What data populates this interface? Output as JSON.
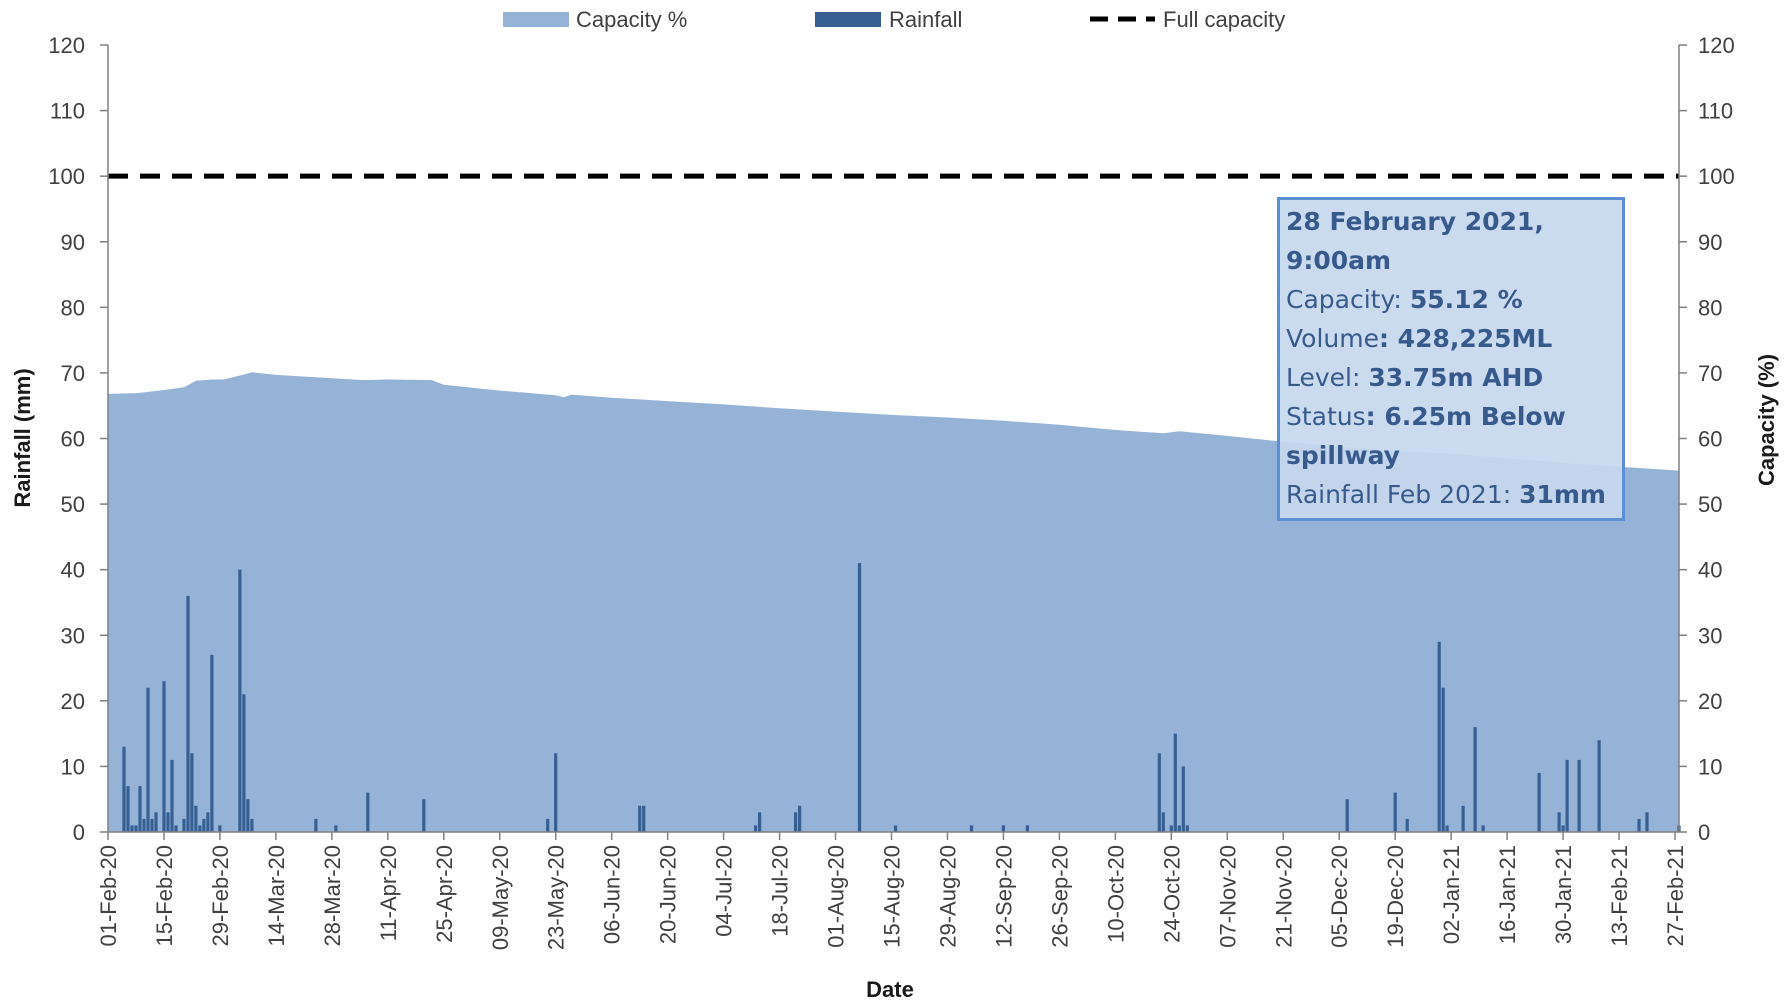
{
  "chart_data": {
    "type": "bar+area",
    "xlabel": "Date",
    "ylabel_left": "Rainfall (mm)",
    "ylabel_right": "Capacity (%)",
    "ylim": [
      0,
      120
    ],
    "yticks": [
      0,
      10,
      20,
      30,
      40,
      50,
      60,
      70,
      80,
      90,
      100,
      110,
      120
    ],
    "xlim": [
      "2020-02-01",
      "2021-02-28"
    ],
    "x_tick_labels": [
      "01-Feb-20",
      "15-Feb-20",
      "29-Feb-20",
      "14-Mar-20",
      "28-Mar-20",
      "11-Apr-20",
      "25-Apr-20",
      "09-May-20",
      "23-May-20",
      "06-Jun-20",
      "20-Jun-20",
      "04-Jul-20",
      "18-Jul-20",
      "01-Aug-20",
      "15-Aug-20",
      "29-Aug-20",
      "12-Sep-20",
      "26-Sep-20",
      "10-Oct-20",
      "24-Oct-20",
      "07-Nov-20",
      "21-Nov-20",
      "05-Dec-20",
      "19-Dec-20",
      "02-Jan-21",
      "16-Jan-21",
      "30-Jan-21",
      "13-Feb-21",
      "27-Feb-21"
    ],
    "x_tick_dates": [
      "2020-02-01",
      "2020-02-15",
      "2020-02-29",
      "2020-03-14",
      "2020-03-28",
      "2020-04-11",
      "2020-04-25",
      "2020-05-09",
      "2020-05-23",
      "2020-06-06",
      "2020-06-20",
      "2020-07-04",
      "2020-07-18",
      "2020-08-01",
      "2020-08-15",
      "2020-08-29",
      "2020-09-12",
      "2020-09-26",
      "2020-10-10",
      "2020-10-24",
      "2020-11-07",
      "2020-11-21",
      "2020-12-05",
      "2020-12-19",
      "2021-01-02",
      "2021-01-16",
      "2021-01-30",
      "2021-02-13",
      "2021-02-27"
    ],
    "legend": {
      "position": "top-center",
      "entries": [
        {
          "label": "Capacity %",
          "color": "#95b3d7",
          "kind": "area"
        },
        {
          "label": "Rainfall",
          "color": "#366092",
          "kind": "bar"
        },
        {
          "label": "Full capacity",
          "color": "#000000",
          "kind": "dashed-line"
        }
      ]
    },
    "series": [
      {
        "name": "Capacity %",
        "axis": "right",
        "type": "area",
        "color": "#95b3d7",
        "points": [
          [
            "2020-02-01",
            66.8
          ],
          [
            "2020-02-08",
            66.9
          ],
          [
            "2020-02-15",
            67.4
          ],
          [
            "2020-02-20",
            67.8
          ],
          [
            "2020-02-23",
            68.8
          ],
          [
            "2020-02-27",
            69.0
          ],
          [
            "2020-03-01",
            69.0
          ],
          [
            "2020-03-05",
            69.6
          ],
          [
            "2020-03-08",
            70.1
          ],
          [
            "2020-03-14",
            69.7
          ],
          [
            "2020-03-28",
            69.2
          ],
          [
            "2020-04-05",
            68.9
          ],
          [
            "2020-04-11",
            69.0
          ],
          [
            "2020-04-22",
            68.9
          ],
          [
            "2020-04-25",
            68.2
          ],
          [
            "2020-05-09",
            67.3
          ],
          [
            "2020-05-23",
            66.6
          ],
          [
            "2020-05-25",
            66.3
          ],
          [
            "2020-05-27",
            66.7
          ],
          [
            "2020-06-06",
            66.2
          ],
          [
            "2020-06-20",
            65.7
          ],
          [
            "2020-07-04",
            65.2
          ],
          [
            "2020-07-18",
            64.6
          ],
          [
            "2020-08-01",
            64.1
          ],
          [
            "2020-08-15",
            63.6
          ],
          [
            "2020-08-29",
            63.2
          ],
          [
            "2020-09-12",
            62.7
          ],
          [
            "2020-09-26",
            62.1
          ],
          [
            "2020-10-10",
            61.3
          ],
          [
            "2020-10-22",
            60.8
          ],
          [
            "2020-10-26",
            61.1
          ],
          [
            "2020-11-07",
            60.4
          ],
          [
            "2020-11-21",
            59.5
          ],
          [
            "2020-12-05",
            58.8
          ],
          [
            "2020-12-19",
            58.1
          ],
          [
            "2021-01-02",
            57.7
          ],
          [
            "2021-01-16",
            57.0
          ],
          [
            "2021-01-30",
            56.3
          ],
          [
            "2021-02-13",
            55.7
          ],
          [
            "2021-02-28",
            55.1
          ]
        ]
      },
      {
        "name": "Rainfall",
        "axis": "left",
        "type": "bar",
        "color": "#366092",
        "points": [
          [
            "2020-02-05",
            13
          ],
          [
            "2020-02-06",
            7
          ],
          [
            "2020-02-07",
            1
          ],
          [
            "2020-02-08",
            1
          ],
          [
            "2020-02-09",
            7
          ],
          [
            "2020-02-10",
            2
          ],
          [
            "2020-02-11",
            22
          ],
          [
            "2020-02-12",
            2
          ],
          [
            "2020-02-13",
            3
          ],
          [
            "2020-02-15",
            23
          ],
          [
            "2020-02-16",
            3
          ],
          [
            "2020-02-17",
            11
          ],
          [
            "2020-02-18",
            1
          ],
          [
            "2020-02-20",
            2
          ],
          [
            "2020-02-21",
            36
          ],
          [
            "2020-02-22",
            12
          ],
          [
            "2020-02-23",
            4
          ],
          [
            "2020-02-24",
            1
          ],
          [
            "2020-02-25",
            2
          ],
          [
            "2020-02-26",
            3
          ],
          [
            "2020-02-27",
            27
          ],
          [
            "2020-02-29",
            1
          ],
          [
            "2020-03-05",
            40
          ],
          [
            "2020-03-06",
            21
          ],
          [
            "2020-03-07",
            5
          ],
          [
            "2020-03-08",
            2
          ],
          [
            "2020-03-24",
            2
          ],
          [
            "2020-03-29",
            1
          ],
          [
            "2020-04-06",
            6
          ],
          [
            "2020-04-20",
            5
          ],
          [
            "2020-05-21",
            2
          ],
          [
            "2020-05-23",
            12
          ],
          [
            "2020-06-13",
            4
          ],
          [
            "2020-06-14",
            4
          ],
          [
            "2020-07-12",
            1
          ],
          [
            "2020-07-13",
            3
          ],
          [
            "2020-07-22",
            3
          ],
          [
            "2020-07-23",
            4
          ],
          [
            "2020-08-07",
            41
          ],
          [
            "2020-08-16",
            1
          ],
          [
            "2020-09-04",
            1
          ],
          [
            "2020-09-12",
            1
          ],
          [
            "2020-09-18",
            1
          ],
          [
            "2020-10-21",
            12
          ],
          [
            "2020-10-22",
            3
          ],
          [
            "2020-10-24",
            1
          ],
          [
            "2020-10-25",
            15
          ],
          [
            "2020-10-26",
            1
          ],
          [
            "2020-10-27",
            10
          ],
          [
            "2020-10-28",
            1
          ],
          [
            "2020-12-07",
            5
          ],
          [
            "2020-12-19",
            6
          ],
          [
            "2020-12-22",
            2
          ],
          [
            "2020-12-30",
            29
          ],
          [
            "2020-12-31",
            22
          ],
          [
            "2021-01-01",
            1
          ],
          [
            "2021-01-05",
            4
          ],
          [
            "2021-01-08",
            16
          ],
          [
            "2021-01-10",
            1
          ],
          [
            "2021-01-24",
            9
          ],
          [
            "2021-01-29",
            3
          ],
          [
            "2021-01-30",
            1
          ],
          [
            "2021-01-31",
            11
          ],
          [
            "2021-02-03",
            11
          ],
          [
            "2021-02-08",
            14
          ],
          [
            "2021-02-18",
            2
          ],
          [
            "2021-02-20",
            3
          ],
          [
            "2021-02-28",
            1
          ]
        ]
      },
      {
        "name": "Full capacity",
        "axis": "right",
        "type": "line",
        "style": "dashed",
        "color": "#000000",
        "value": 100
      }
    ]
  },
  "info_box": {
    "title": "28 February 2021, 9:00am",
    "capacity_label": "Capacity: ",
    "capacity_value": "55.12 %",
    "volume_label": "Volume",
    "volume_value": ": 428,225ML",
    "level_label": "Level: ",
    "level_value": "33.75m AHD",
    "status_label": "Status",
    "status_value": ": 6.25m Below spillway",
    "rainfall_label": "Rainfall Feb 2021: ",
    "rainfall_value": "31mm"
  }
}
